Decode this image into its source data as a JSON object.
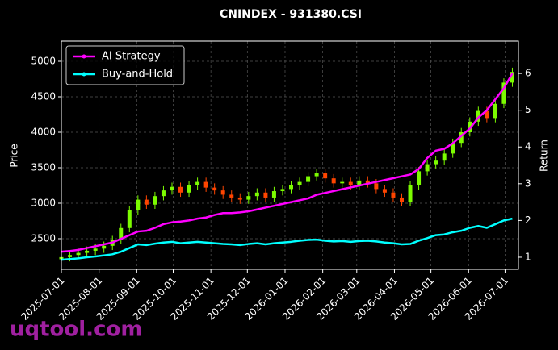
{
  "chart_data": {
    "type": "candlestick",
    "title": "CNINDEX - 931380.CSI",
    "y_label": "Price",
    "y2_label": "Return",
    "watermark": "uqtool.com",
    "grid": true,
    "legend": "upper left",
    "up_color": "#7CFC00",
    "down_color": "#FF4500",
    "xlim": [
      "2025-07-01",
      "2026-07-12"
    ],
    "xticks": [
      "2025-07-01",
      "2025-08-01",
      "2025-09-01",
      "2025-10-01",
      "2025-11-01",
      "2025-12-01",
      "2026-01-01",
      "2026-02-01",
      "2026-03-01",
      "2026-04-01",
      "2026-05-01",
      "2026-06-01",
      "2026-07-01"
    ],
    "ylim": [
      2068,
      5284
    ],
    "yticks": [
      2500,
      3000,
      3500,
      4000,
      4500,
      5000
    ],
    "y2lim": [
      0.67,
      6.88
    ],
    "y2ticks": [
      1,
      2,
      3,
      4,
      5,
      6
    ],
    "x": [
      "2025-07-01",
      "2025-07-08",
      "2025-07-15",
      "2025-07-22",
      "2025-07-29",
      "2025-08-05",
      "2025-08-12",
      "2025-08-19",
      "2025-08-26",
      "2025-09-02",
      "2025-09-09",
      "2025-09-16",
      "2025-09-23",
      "2025-09-30",
      "2025-10-07",
      "2025-10-14",
      "2025-10-21",
      "2025-10-28",
      "2025-11-04",
      "2025-11-11",
      "2025-11-18",
      "2025-11-25",
      "2025-12-02",
      "2025-12-09",
      "2025-12-16",
      "2025-12-23",
      "2025-12-30",
      "2026-01-06",
      "2026-01-13",
      "2026-01-20",
      "2026-01-27",
      "2026-02-03",
      "2026-02-10",
      "2026-02-17",
      "2026-02-24",
      "2026-03-03",
      "2026-03-10",
      "2026-03-17",
      "2026-03-24",
      "2026-03-31",
      "2026-04-07",
      "2026-04-14",
      "2026-04-21",
      "2026-04-28",
      "2026-05-05",
      "2026-05-12",
      "2026-05-19",
      "2026-05-26",
      "2026-06-02",
      "2026-06-09",
      "2026-06-16",
      "2026-06-23",
      "2026-06-30",
      "2026-07-07"
    ],
    "open": [
      2210,
      2240,
      2270,
      2300,
      2330,
      2360,
      2400,
      2480,
      2650,
      2900,
      3050,
      2980,
      3100,
      3180,
      3230,
      3150,
      3250,
      3300,
      3220,
      3180,
      3120,
      3080,
      3050,
      3100,
      3150,
      3080,
      3170,
      3200,
      3250,
      3300,
      3380,
      3420,
      3350,
      3280,
      3300,
      3250,
      3320,
      3280,
      3200,
      3150,
      3080,
      3020,
      3250,
      3450,
      3550,
      3600,
      3700,
      3850,
      4000,
      4150,
      4300,
      4200,
      4400,
      4700
    ],
    "high": [
      2300,
      2330,
      2360,
      2390,
      2420,
      2460,
      2540,
      2710,
      2960,
      3110,
      3110,
      3160,
      3240,
      3290,
      3290,
      3310,
      3360,
      3360,
      3280,
      3240,
      3180,
      3140,
      3160,
      3210,
      3210,
      3230,
      3260,
      3310,
      3360,
      3440,
      3480,
      3480,
      3410,
      3360,
      3360,
      3380,
      3380,
      3340,
      3260,
      3210,
      3140,
      3310,
      3510,
      3610,
      3660,
      3760,
      3910,
      4060,
      4210,
      4360,
      4360,
      4460,
      4760,
      4910
    ],
    "low": [
      2150,
      2180,
      2210,
      2240,
      2270,
      2300,
      2340,
      2420,
      2590,
      2840,
      2920,
      2920,
      3040,
      3120,
      3090,
      3090,
      3190,
      3160,
      3120,
      3060,
      3020,
      2990,
      2990,
      3040,
      3020,
      3020,
      3110,
      3140,
      3190,
      3240,
      3320,
      3290,
      3220,
      3220,
      3190,
      3190,
      3220,
      3140,
      3090,
      3020,
      2960,
      2960,
      3190,
      3390,
      3490,
      3540,
      3640,
      3790,
      3940,
      4090,
      4140,
      4140,
      4340,
      4640
    ],
    "close": [
      2240,
      2270,
      2300,
      2330,
      2360,
      2400,
      2480,
      2650,
      2900,
      3050,
      2980,
      3100,
      3180,
      3230,
      3150,
      3250,
      3300,
      3220,
      3180,
      3120,
      3080,
      3050,
      3100,
      3150,
      3080,
      3170,
      3200,
      3250,
      3300,
      3380,
      3420,
      3350,
      3280,
      3300,
      3250,
      3320,
      3280,
      3200,
      3150,
      3080,
      3020,
      3250,
      3450,
      3550,
      3600,
      3700,
      3850,
      4000,
      4150,
      4300,
      4200,
      4400,
      4700,
      4850
    ],
    "series": [
      {
        "name": "AI Strategy",
        "color": "#ff00ff",
        "axis": "y2",
        "values": [
          1.15,
          1.17,
          1.2,
          1.25,
          1.3,
          1.35,
          1.4,
          1.5,
          1.6,
          1.7,
          1.72,
          1.8,
          1.9,
          1.95,
          1.97,
          2.0,
          2.05,
          2.08,
          2.15,
          2.2,
          2.2,
          2.22,
          2.25,
          2.3,
          2.35,
          2.4,
          2.45,
          2.5,
          2.55,
          2.6,
          2.7,
          2.75,
          2.8,
          2.85,
          2.9,
          2.95,
          3.0,
          3.05,
          3.1,
          3.15,
          3.2,
          3.25,
          3.4,
          3.7,
          3.9,
          3.95,
          4.1,
          4.3,
          4.5,
          4.8,
          5.0,
          5.3,
          5.6,
          6.0
        ]
      },
      {
        "name": "Buy-and-Hold",
        "color": "#00ffff",
        "axis": "y2",
        "values": [
          0.93,
          0.95,
          0.97,
          1.0,
          1.02,
          1.05,
          1.08,
          1.15,
          1.25,
          1.35,
          1.33,
          1.37,
          1.4,
          1.42,
          1.38,
          1.4,
          1.42,
          1.4,
          1.38,
          1.36,
          1.35,
          1.33,
          1.36,
          1.38,
          1.35,
          1.38,
          1.4,
          1.42,
          1.45,
          1.47,
          1.48,
          1.45,
          1.43,
          1.44,
          1.42,
          1.44,
          1.45,
          1.43,
          1.4,
          1.38,
          1.35,
          1.36,
          1.45,
          1.52,
          1.6,
          1.62,
          1.68,
          1.72,
          1.8,
          1.85,
          1.8,
          1.9,
          2.0,
          2.05
        ]
      }
    ]
  }
}
